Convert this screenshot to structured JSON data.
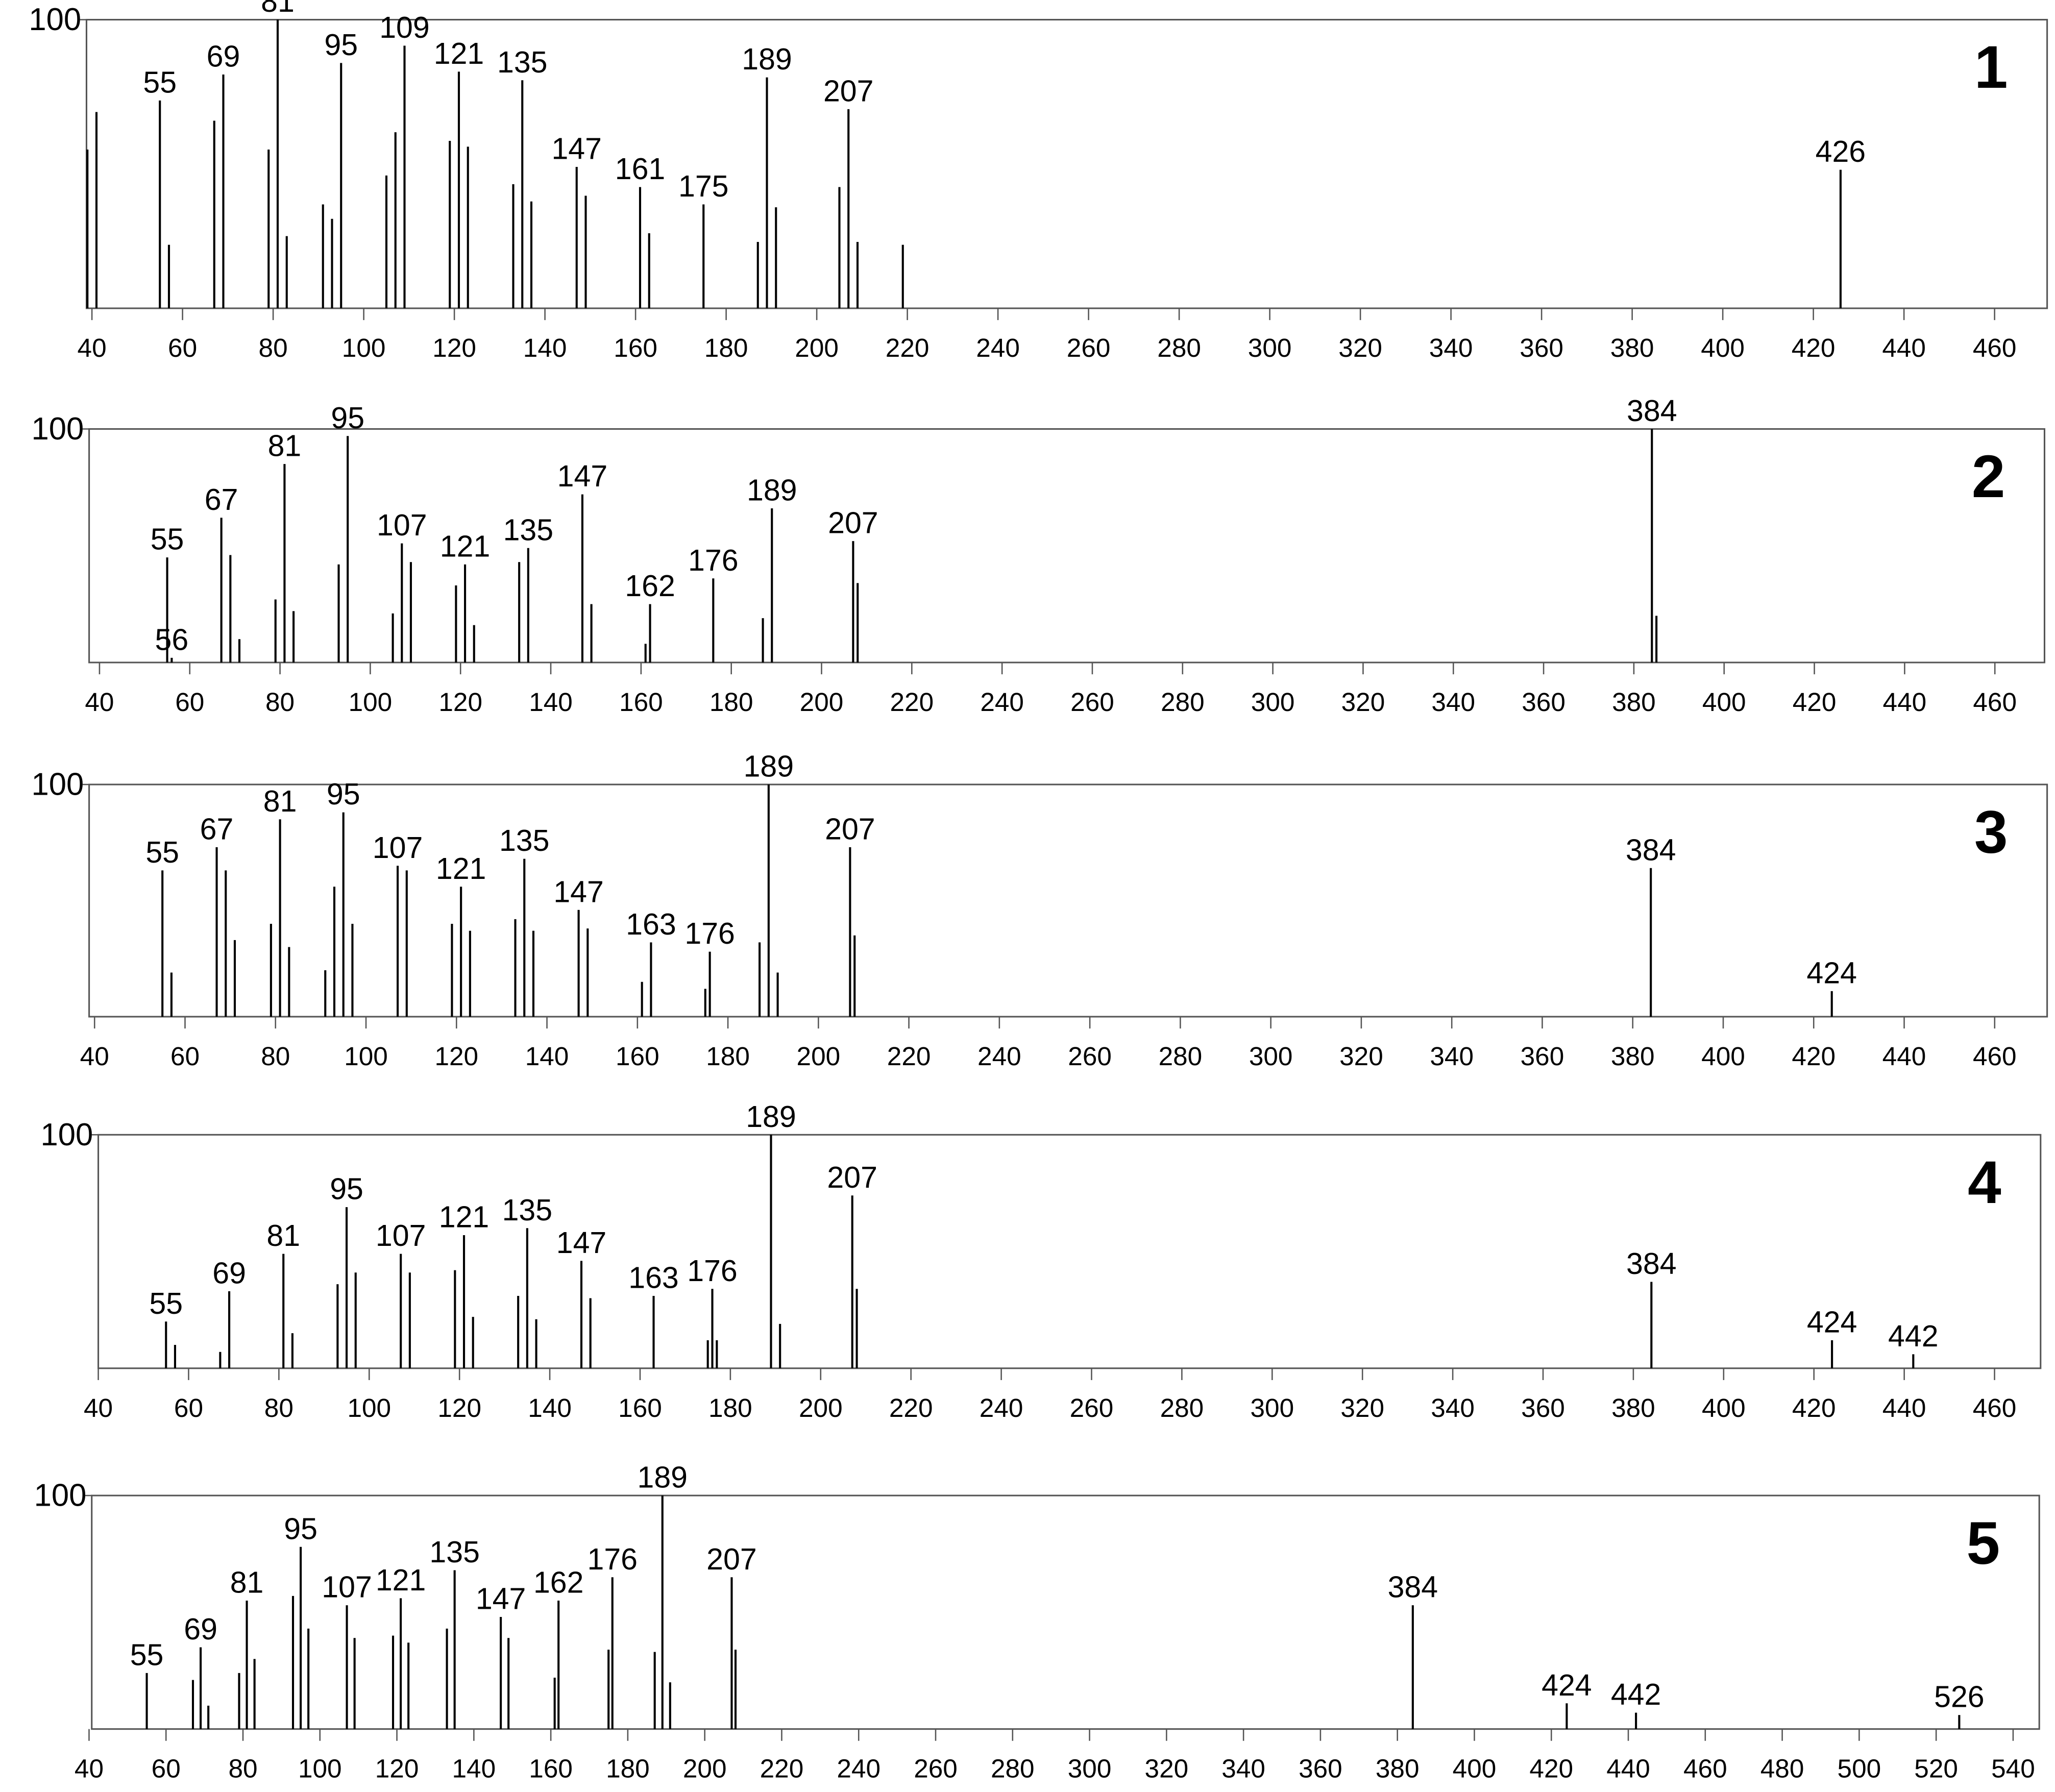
{
  "chart_data": [
    {
      "type": "bar",
      "title": "1",
      "color": "#000000",
      "x": [
        39,
        41,
        55,
        57,
        67,
        69,
        79,
        81,
        83,
        91,
        93,
        95,
        105,
        107,
        109,
        119,
        121,
        123,
        133,
        135,
        137,
        147,
        149,
        161,
        163,
        175,
        187,
        189,
        191,
        205,
        207,
        209,
        219,
        426
      ],
      "values": [
        55,
        68,
        72,
        22,
        65,
        81,
        55,
        100,
        25,
        36,
        31,
        85,
        46,
        61,
        91,
        58,
        82,
        56,
        43,
        79,
        37,
        49,
        39,
        42,
        26,
        36,
        23,
        80,
        35,
        42,
        69,
        23,
        22,
        48
      ],
      "peak_labels": [
        null,
        null,
        55,
        null,
        null,
        69,
        null,
        81,
        null,
        null,
        null,
        95,
        null,
        null,
        109,
        null,
        121,
        null,
        null,
        135,
        null,
        147,
        null,
        161,
        null,
        175,
        null,
        189,
        null,
        null,
        207,
        null,
        null,
        426
      ],
      "xlim": [
        38.8,
        471.6
      ],
      "ylim": [
        0,
        100
      ],
      "xticks": [
        40,
        60,
        80,
        100,
        120,
        140,
        160,
        180,
        200,
        220,
        240,
        260,
        280,
        300,
        320,
        340,
        360,
        380,
        400,
        420,
        440,
        460
      ],
      "yticks": [
        100
      ]
    },
    {
      "type": "bar",
      "title": "2",
      "color": "#000000",
      "x": [
        55,
        56,
        67,
        69,
        71,
        79,
        81,
        83,
        93,
        95,
        105,
        107,
        109,
        119,
        121,
        123,
        133,
        135,
        147,
        149,
        161,
        162,
        176,
        187,
        189,
        207,
        208,
        384,
        385
      ],
      "values": [
        45,
        2,
        62,
        46,
        10,
        27,
        85,
        22,
        42,
        97,
        21,
        51,
        43,
        33,
        42,
        16,
        43,
        49,
        72,
        25,
        8,
        25,
        36,
        19,
        66,
        52,
        34,
        100,
        20
      ],
      "peak_labels": [
        55,
        56,
        67,
        null,
        null,
        null,
        81,
        null,
        null,
        95,
        null,
        107,
        null,
        null,
        121,
        null,
        null,
        135,
        147,
        null,
        null,
        162,
        176,
        null,
        189,
        207,
        null,
        384,
        null
      ],
      "xlim": [
        37.7,
        471
      ],
      "ylim": [
        0,
        100
      ],
      "xticks": [
        40,
        60,
        80,
        100,
        120,
        140,
        160,
        180,
        200,
        220,
        240,
        260,
        280,
        300,
        320,
        340,
        360,
        380,
        400,
        420,
        440,
        460
      ],
      "yticks": [
        100
      ]
    },
    {
      "type": "bar",
      "title": "3",
      "color": "#000000",
      "x": [
        55,
        57,
        67,
        69,
        71,
        79,
        81,
        83,
        91,
        93,
        95,
        97,
        107,
        109,
        119,
        121,
        123,
        133,
        135,
        137,
        147,
        149,
        161,
        163,
        175,
        176,
        187,
        189,
        191,
        207,
        208,
        384,
        424
      ],
      "values": [
        63,
        19,
        73,
        63,
        33,
        40,
        85,
        30,
        20,
        56,
        88,
        40,
        65,
        63,
        40,
        56,
        37,
        42,
        68,
        37,
        46,
        38,
        15,
        32,
        12,
        28,
        32,
        100,
        19,
        73,
        35,
        64,
        11
      ],
      "peak_labels": [
        55,
        null,
        67,
        null,
        null,
        null,
        81,
        null,
        null,
        null,
        95,
        null,
        107,
        null,
        null,
        121,
        null,
        null,
        135,
        null,
        147,
        null,
        null,
        163,
        null,
        176,
        null,
        189,
        null,
        207,
        null,
        384,
        424
      ],
      "xlim": [
        38.8,
        471.6
      ],
      "ylim": [
        0,
        100
      ],
      "xticks": [
        40,
        60,
        80,
        100,
        120,
        140,
        160,
        180,
        200,
        220,
        240,
        260,
        280,
        300,
        320,
        340,
        360,
        380,
        400,
        420,
        440,
        460
      ],
      "yticks": [
        100
      ]
    },
    {
      "type": "bar",
      "title": "4",
      "color": "#000000",
      "x": [
        55,
        57,
        67,
        69,
        81,
        83,
        93,
        95,
        97,
        107,
        109,
        119,
        121,
        123,
        133,
        135,
        137,
        147,
        149,
        163,
        175,
        176,
        177,
        189,
        191,
        207,
        208,
        384,
        424,
        442
      ],
      "values": [
        20,
        10,
        7,
        33,
        49,
        15,
        36,
        69,
        41,
        49,
        41,
        42,
        57,
        22,
        31,
        60,
        21,
        46,
        30,
        31,
        12,
        34,
        12,
        100,
        19,
        74,
        34,
        37,
        12,
        6
      ],
      "peak_labels": [
        55,
        null,
        null,
        69,
        81,
        null,
        null,
        95,
        null,
        107,
        null,
        null,
        121,
        null,
        null,
        135,
        null,
        147,
        null,
        163,
        null,
        176,
        null,
        189,
        null,
        207,
        null,
        384,
        424,
        442
      ],
      "xlim": [
        40,
        470.2
      ],
      "ylim": [
        0,
        100
      ],
      "xticks": [
        40,
        60,
        80,
        100,
        120,
        140,
        160,
        180,
        200,
        220,
        240,
        260,
        280,
        300,
        320,
        340,
        360,
        380,
        400,
        420,
        440,
        460
      ],
      "yticks": [
        100
      ]
    },
    {
      "type": "bar",
      "title": "5",
      "color": "#000000",
      "x": [
        55,
        67,
        69,
        71,
        79,
        81,
        83,
        93,
        95,
        97,
        107,
        109,
        119,
        121,
        123,
        133,
        135,
        147,
        149,
        161,
        162,
        175,
        176,
        187,
        189,
        191,
        207,
        208,
        384,
        424,
        442,
        526
      ],
      "values": [
        24,
        21,
        35,
        10,
        24,
        55,
        30,
        57,
        78,
        43,
        53,
        39,
        40,
        56,
        37,
        43,
        68,
        48,
        39,
        22,
        55,
        34,
        65,
        33,
        100,
        20,
        65,
        34,
        53,
        11,
        7,
        6
      ],
      "peak_labels": [
        55,
        null,
        69,
        null,
        null,
        81,
        null,
        null,
        95,
        null,
        107,
        null,
        null,
        121,
        null,
        null,
        135,
        147,
        null,
        null,
        162,
        null,
        176,
        null,
        189,
        null,
        207,
        null,
        384,
        424,
        442,
        526
      ],
      "xlim": [
        40.7,
        546.8
      ],
      "ylim": [
        0,
        100
      ],
      "xticks": [
        40,
        60,
        80,
        100,
        120,
        140,
        160,
        180,
        200,
        220,
        240,
        260,
        280,
        300,
        320,
        340,
        360,
        380,
        400,
        420,
        440,
        460,
        480,
        500,
        520,
        540
      ],
      "yticks": [
        100
      ]
    }
  ]
}
